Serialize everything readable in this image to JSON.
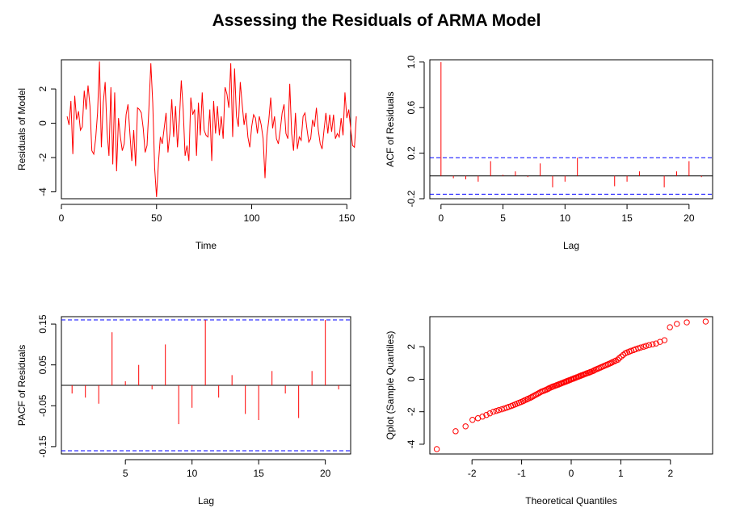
{
  "title": "Assessing the Residuals of ARMA Model",
  "colors": {
    "series": "#ff0000",
    "ci": "#0000ff",
    "axis": "#000000"
  },
  "chart_data": [
    {
      "type": "line",
      "xlabel": "Time",
      "ylabel": "Residuals of Model",
      "xlim": [
        0,
        152
      ],
      "ylim": [
        -4.4,
        3.7
      ],
      "xticks": [
        0,
        50,
        100,
        150
      ],
      "yticks": [
        -4,
        -2,
        0,
        2
      ],
      "x_start": 3,
      "values": [
        0.4,
        -0.1,
        1.3,
        -1.8,
        1.6,
        0.2,
        0.7,
        -0.4,
        -0.2,
        1.9,
        0.8,
        2.2,
        1.0,
        -1.6,
        -1.8,
        -0.9,
        0.6,
        3.6,
        -1.4,
        1.2,
        2.4,
        -0.5,
        -1.9,
        2.1,
        -2.4,
        1.8,
        -2.8,
        0.3,
        -0.8,
        -1.6,
        -1.2,
        0.5,
        1.1,
        -0.6,
        -2.2,
        -0.4,
        -2.5,
        0.9,
        0.8,
        0.6,
        -0.3,
        -1.7,
        -1.3,
        0.9,
        3.5,
        1.2,
        -2.6,
        -4.3,
        -2.3,
        -0.8,
        -1.2,
        -0.3,
        0.6,
        -1.7,
        -0.6,
        1.4,
        -0.8,
        1.0,
        -1.4,
        0.2,
        2.5,
        0.8,
        -1.9,
        -1.3,
        -2.2,
        1.5,
        0.5,
        0.8,
        -1.9,
        1.2,
        -0.7,
        1.8,
        -0.4,
        -0.7,
        -0.8,
        0.8,
        -2.2,
        1.3,
        -0.6,
        1.0,
        -0.7,
        0.4,
        -0.9,
        2.1,
        1.7,
        0.9,
        3.5,
        -0.8,
        3.2,
        0.4,
        -0.2,
        2.4,
        1.1,
        -0.1,
        0.6,
        -0.8,
        -1.4,
        -0.2,
        0.5,
        0.3,
        -0.6,
        0.4,
        -0.1,
        -0.9,
        -3.2,
        -0.7,
        0.2,
        1.5,
        -0.3,
        0.4,
        -0.9,
        -1.2,
        -0.4,
        0.6,
        1.1,
        -0.6,
        -0.9,
        2.3,
        -0.6,
        -1.6,
        0.6,
        -1.5,
        -0.8,
        -1.0,
        0.4,
        0.6,
        -0.3,
        -1.1,
        -0.9,
        0.2,
        -0.2,
        0.9,
        -0.4,
        -1.2,
        -1.5,
        -0.4,
        0.6,
        -0.6,
        0.5,
        -0.5,
        0.5,
        -0.9,
        -0.6,
        -0.8,
        0.3,
        -0.7,
        1.8,
        0.3,
        0.8,
        -0.3,
        -1.3,
        -1.4,
        0.4
      ]
    },
    {
      "type": "bar",
      "xlabel": "Lag",
      "ylabel": "ACF of Residuals",
      "xlim": [
        -0.9,
        21.9
      ],
      "ylim": [
        -0.2,
        1.02
      ],
      "xticks": [
        0,
        5,
        10,
        15,
        20
      ],
      "yticks": [
        -0.2,
        0.2,
        0.6,
        1.0
      ],
      "ytick_labels": [
        "-0.2",
        "0.2",
        "0.6",
        "1.0"
      ],
      "ci": [
        0.16,
        -0.16
      ],
      "lags": [
        0,
        1,
        2,
        3,
        4,
        5,
        6,
        7,
        8,
        9,
        10,
        11,
        12,
        13,
        14,
        15,
        16,
        17,
        18,
        19,
        20,
        21
      ],
      "values": [
        1.0,
        -0.02,
        -0.03,
        -0.05,
        0.13,
        0.01,
        0.04,
        -0.01,
        0.11,
        -0.1,
        -0.05,
        0.16,
        0.0,
        0.0,
        -0.09,
        -0.05,
        0.04,
        0.0,
        -0.1,
        0.04,
        0.13,
        -0.01
      ]
    },
    {
      "type": "bar",
      "xlabel": "Lag",
      "ylabel": "PACF of Residuals",
      "xlim": [
        0.2,
        21.9
      ],
      "ylim": [
        -0.168,
        0.168
      ],
      "xticks": [
        5,
        10,
        15,
        20
      ],
      "yticks": [
        -0.15,
        -0.05,
        0.05,
        0.15
      ],
      "ytick_labels": [
        "-0.15",
        "-0.05",
        "0.05",
        "0.15"
      ],
      "ci": [
        0.16,
        -0.16
      ],
      "lags": [
        1,
        2,
        3,
        4,
        5,
        6,
        7,
        8,
        9,
        10,
        11,
        12,
        13,
        14,
        15,
        16,
        17,
        18,
        19,
        20,
        21
      ],
      "values": [
        -0.02,
        -0.03,
        -0.045,
        0.13,
        0.01,
        0.05,
        -0.01,
        0.1,
        -0.095,
        -0.055,
        0.16,
        -0.03,
        0.025,
        -0.07,
        -0.085,
        0.035,
        -0.02,
        -0.08,
        0.035,
        0.16,
        -0.01
      ]
    },
    {
      "type": "scatter",
      "xlabel": "Theoretical Quantiles",
      "ylabel": "Qplot (Sample Quantiles)",
      "xlim": [
        -2.85,
        2.85
      ],
      "ylim": [
        -4.6,
        3.85
      ],
      "xticks": [
        -2,
        -1,
        0,
        1,
        2
      ],
      "yticks": [
        -4,
        -2,
        0,
        2
      ],
      "n": 150,
      "points": [
        [
          -2.71,
          -4.3
        ],
        [
          -2.33,
          -3.2
        ],
        [
          -2.13,
          -2.9
        ],
        [
          -1.99,
          -2.5
        ],
        [
          -1.88,
          -2.4
        ],
        [
          -1.79,
          -2.3
        ],
        [
          -1.71,
          -2.2
        ],
        [
          -1.64,
          -2.1
        ],
        [
          -1.57,
          -2.0
        ],
        [
          -1.51,
          -1.95
        ],
        [
          -1.46,
          -1.9
        ],
        [
          -1.4,
          -1.85
        ],
        [
          -1.35,
          -1.8
        ],
        [
          -1.3,
          -1.75
        ],
        [
          -1.26,
          -1.7
        ],
        [
          -1.21,
          -1.65
        ],
        [
          -1.17,
          -1.6
        ],
        [
          -1.13,
          -1.55
        ],
        [
          -1.09,
          -1.5
        ],
        [
          -1.05,
          -1.45
        ],
        [
          -1.01,
          -1.4
        ],
        [
          -0.97,
          -1.35
        ],
        [
          -0.94,
          -1.3
        ],
        [
          -0.9,
          -1.25
        ],
        [
          -0.87,
          -1.2
        ],
        [
          -0.83,
          -1.15
        ],
        [
          -0.8,
          -1.1
        ],
        [
          -0.77,
          -1.05
        ],
        [
          -0.74,
          -1.0
        ],
        [
          -0.71,
          -0.95
        ],
        [
          -0.68,
          -0.9
        ],
        [
          -0.65,
          -0.85
        ],
        [
          -0.62,
          -0.8
        ],
        [
          -0.59,
          -0.75
        ],
        [
          -0.56,
          -0.72
        ],
        [
          -0.53,
          -0.68
        ],
        [
          -0.5,
          -0.64
        ],
        [
          -0.47,
          -0.6
        ],
        [
          -0.45,
          -0.56
        ],
        [
          -0.42,
          -0.52
        ],
        [
          -0.39,
          -0.48
        ],
        [
          -0.37,
          -0.45
        ],
        [
          -0.34,
          -0.42
        ],
        [
          -0.31,
          -0.39
        ],
        [
          -0.29,
          -0.36
        ],
        [
          -0.26,
          -0.33
        ],
        [
          -0.24,
          -0.3
        ],
        [
          -0.21,
          -0.27
        ],
        [
          -0.19,
          -0.24
        ],
        [
          -0.16,
          -0.21
        ],
        [
          -0.14,
          -0.18
        ],
        [
          -0.11,
          -0.15
        ],
        [
          -0.09,
          -0.12
        ],
        [
          -0.06,
          -0.09
        ],
        [
          -0.04,
          -0.06
        ],
        [
          -0.01,
          -0.03
        ],
        [
          0.01,
          0.0
        ],
        [
          0.04,
          0.03
        ],
        [
          0.06,
          0.06
        ],
        [
          0.09,
          0.09
        ],
        [
          0.11,
          0.12
        ],
        [
          0.14,
          0.15
        ],
        [
          0.16,
          0.18
        ],
        [
          0.19,
          0.21
        ],
        [
          0.21,
          0.24
        ],
        [
          0.24,
          0.27
        ],
        [
          0.26,
          0.3
        ],
        [
          0.29,
          0.33
        ],
        [
          0.31,
          0.36
        ],
        [
          0.34,
          0.39
        ],
        [
          0.37,
          0.42
        ],
        [
          0.39,
          0.45
        ],
        [
          0.42,
          0.48
        ],
        [
          0.45,
          0.52
        ],
        [
          0.47,
          0.56
        ],
        [
          0.5,
          0.6
        ],
        [
          0.53,
          0.64
        ],
        [
          0.56,
          0.68
        ],
        [
          0.59,
          0.72
        ],
        [
          0.62,
          0.76
        ],
        [
          0.65,
          0.8
        ],
        [
          0.68,
          0.84
        ],
        [
          0.71,
          0.88
        ],
        [
          0.74,
          0.92
        ],
        [
          0.77,
          0.96
        ],
        [
          0.8,
          1.0
        ],
        [
          0.83,
          1.05
        ],
        [
          0.87,
          1.1
        ],
        [
          0.9,
          1.15
        ],
        [
          0.94,
          1.2
        ],
        [
          0.97,
          1.3
        ],
        [
          1.01,
          1.4
        ],
        [
          1.05,
          1.5
        ],
        [
          1.09,
          1.6
        ],
        [
          1.13,
          1.65
        ],
        [
          1.17,
          1.7
        ],
        [
          1.21,
          1.75
        ],
        [
          1.26,
          1.8
        ],
        [
          1.3,
          1.85
        ],
        [
          1.35,
          1.9
        ],
        [
          1.4,
          1.95
        ],
        [
          1.46,
          2.0
        ],
        [
          1.51,
          2.05
        ],
        [
          1.57,
          2.1
        ],
        [
          1.64,
          2.15
        ],
        [
          1.71,
          2.2
        ],
        [
          1.79,
          2.3
        ],
        [
          1.88,
          2.4
        ],
        [
          1.99,
          3.2
        ],
        [
          2.13,
          3.4
        ],
        [
          2.33,
          3.5
        ],
        [
          2.71,
          3.55
        ]
      ]
    }
  ]
}
